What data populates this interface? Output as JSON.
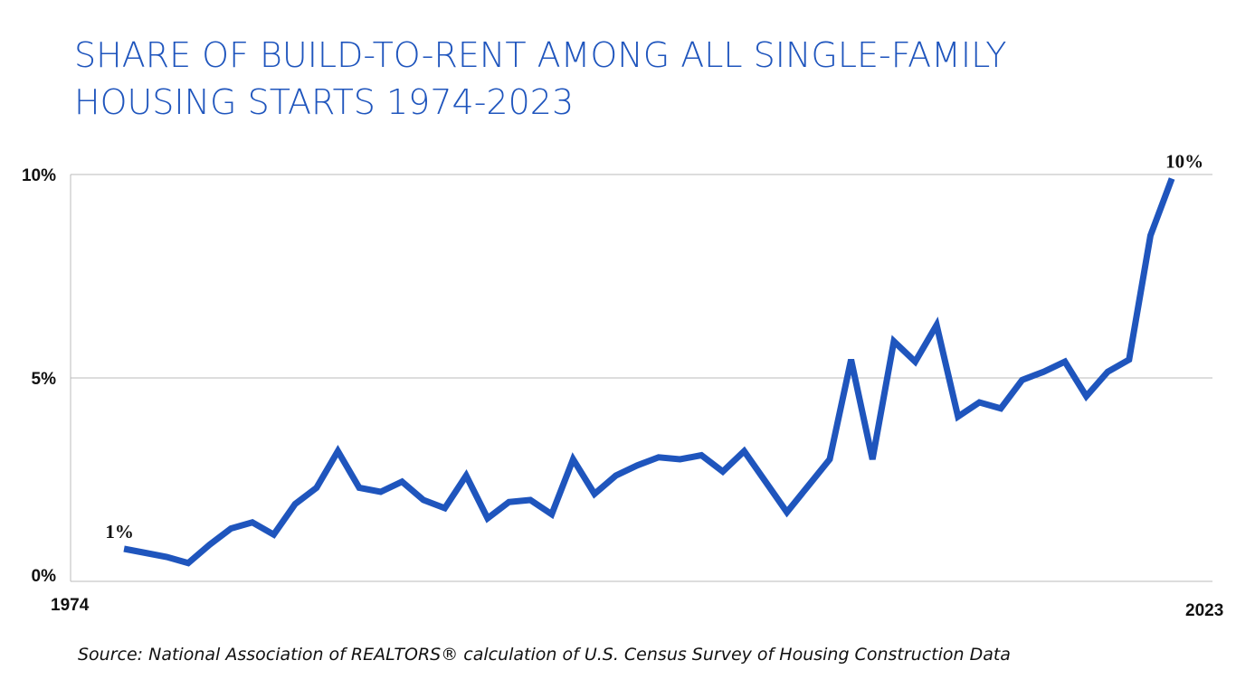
{
  "chart_data": {
    "type": "line",
    "title_lines": [
      "SHARE OF BUILD-TO-RENT AMONG ALL SINGLE-FAMILY",
      "HOUSING STARTS 1974-2023"
    ],
    "source": "Source: National Association of REALTORS® calculation of U.S. Census Survey of Housing Construction Data",
    "x_axis_labels": [
      "1974",
      "2023"
    ],
    "x": [
      1974,
      1975,
      1976,
      1977,
      1978,
      1979,
      1980,
      1981,
      1982,
      1983,
      1984,
      1985,
      1986,
      1987,
      1988,
      1989,
      1990,
      1991,
      1992,
      1993,
      1994,
      1995,
      1996,
      1997,
      1998,
      1999,
      2000,
      2001,
      2002,
      2003,
      2004,
      2005,
      2006,
      2007,
      2008,
      2009,
      2010,
      2011,
      2012,
      2013,
      2014,
      2015,
      2016,
      2017,
      2018,
      2019,
      2020,
      2021,
      2022,
      2023
    ],
    "series": [
      {
        "name": "Build-to-rent share",
        "color": "#1f55bd",
        "values": [
          0.8,
          0.7,
          0.6,
          0.45,
          0.9,
          1.3,
          1.45,
          1.15,
          1.9,
          2.3,
          3.2,
          2.3,
          2.2,
          2.45,
          2.0,
          1.8,
          2.6,
          1.55,
          1.95,
          2.0,
          1.65,
          3.0,
          2.15,
          2.6,
          2.85,
          3.05,
          3.0,
          3.1,
          2.7,
          3.2,
          2.45,
          1.7,
          2.35,
          3.0,
          5.45,
          3.0,
          5.9,
          5.4,
          6.3,
          4.05,
          4.4,
          4.25,
          4.95,
          5.15,
          5.4,
          4.55,
          5.15,
          5.45,
          8.5,
          9.9
        ],
        "value_labels": [
          "1%",
          null,
          null,
          null,
          null,
          null,
          null,
          null,
          null,
          null,
          null,
          null,
          null,
          null,
          null,
          null,
          null,
          null,
          null,
          null,
          null,
          null,
          null,
          null,
          null,
          null,
          null,
          null,
          null,
          null,
          null,
          null,
          null,
          null,
          null,
          null,
          null,
          null,
          null,
          null,
          null,
          null,
          null,
          null,
          null,
          null,
          null,
          null,
          null,
          "10%"
        ]
      }
    ],
    "xlim": [
      1971.5,
      2024.9
    ],
    "ylim": [
      0,
      10
    ],
    "yticks": [
      {
        "value": 0,
        "label": "0%"
      },
      {
        "value": 5,
        "label": "5%"
      },
      {
        "value": 10,
        "label": "10%"
      }
    ],
    "grid": true
  }
}
